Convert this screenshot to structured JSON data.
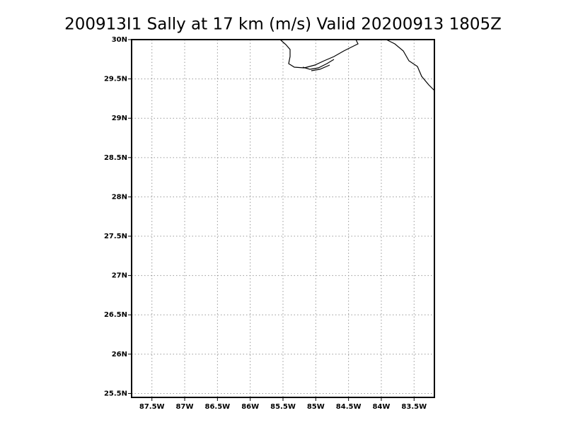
{
  "chart_data": {
    "type": "map",
    "title": "200913I1 Sally at 17 km (m/s) Valid 20200913 1805Z",
    "xlim": [
      -87.81,
      -83.19
    ],
    "ylim": [
      25.45,
      30.0
    ],
    "xticks": [
      {
        "value": -87.5,
        "label": "87.5W"
      },
      {
        "value": -87,
        "label": "87W"
      },
      {
        "value": -86.5,
        "label": "86.5W"
      },
      {
        "value": -86,
        "label": "86W"
      },
      {
        "value": -85.5,
        "label": "85.5W"
      },
      {
        "value": -85,
        "label": "85W"
      },
      {
        "value": -84.5,
        "label": "84.5W"
      },
      {
        "value": -84,
        "label": "84W"
      },
      {
        "value": -83.5,
        "label": "83.5W"
      }
    ],
    "yticks": [
      {
        "value": 25.5,
        "label": "25.5N"
      },
      {
        "value": 26,
        "label": "26N"
      },
      {
        "value": 26.5,
        "label": "26.5N"
      },
      {
        "value": 27,
        "label": "27N"
      },
      {
        "value": 27.5,
        "label": "27.5N"
      },
      {
        "value": 28,
        "label": "28N"
      },
      {
        "value": 28.5,
        "label": "28.5N"
      },
      {
        "value": 29,
        "label": "29N"
      },
      {
        "value": 29.5,
        "label": "29.5N"
      },
      {
        "value": 30,
        "label": "30N"
      }
    ],
    "grid": true
  }
}
